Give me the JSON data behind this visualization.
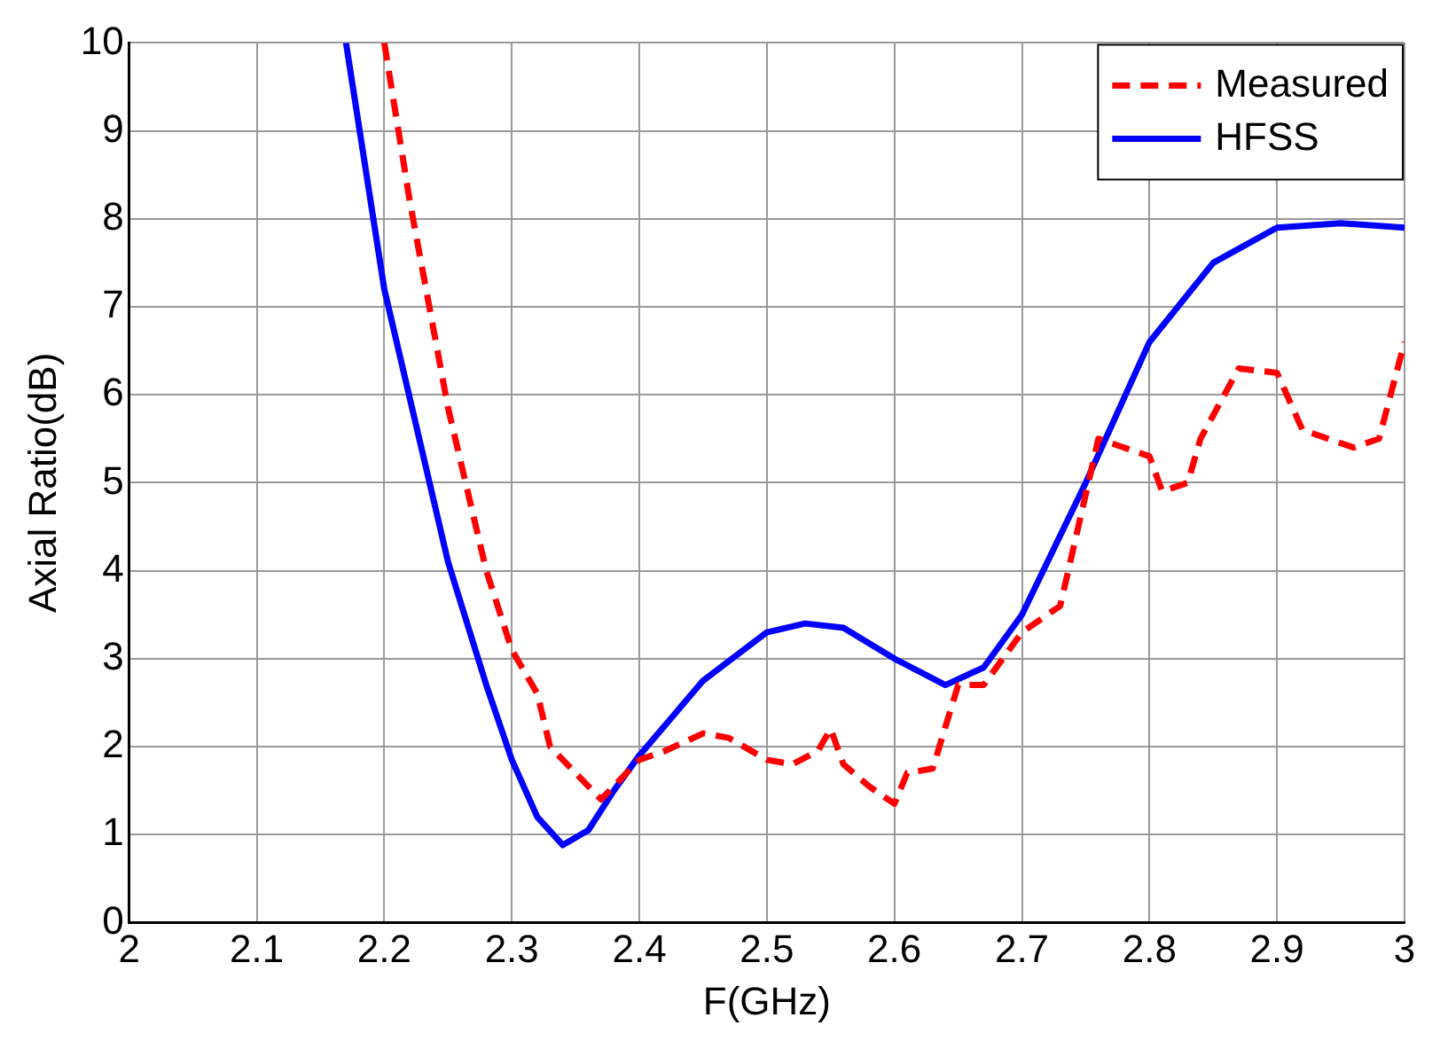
{
  "chart_data": {
    "type": "line",
    "xlabel": "F(GHz)",
    "ylabel": "Axial Ratio(dB)",
    "xlim": [
      2,
      3
    ],
    "xticks": [
      2,
      2.1,
      2.2,
      2.3,
      2.4,
      2.5,
      2.6,
      2.7,
      2.8,
      2.9,
      3
    ],
    "ylim": [
      0,
      10
    ],
    "yticks": [
      0,
      1,
      2,
      3,
      4,
      5,
      6,
      7,
      8,
      9,
      10
    ],
    "grid": true,
    "legend": "top right",
    "marker": "none",
    "series": [
      {
        "name": "Measured",
        "color": "#ff0000",
        "line_style": "dashed",
        "x": [
          2.2,
          2.22,
          2.25,
          2.28,
          2.3,
          2.32,
          2.33,
          2.35,
          2.37,
          2.4,
          2.42,
          2.45,
          2.47,
          2.5,
          2.52,
          2.54,
          2.55,
          2.56,
          2.58,
          2.6,
          2.61,
          2.63,
          2.65,
          2.67,
          2.7,
          2.73,
          2.76,
          2.78,
          2.8,
          2.81,
          2.83,
          2.84,
          2.87,
          2.9,
          2.92,
          2.94,
          2.96,
          2.98,
          3.0
        ],
        "values": [
          10,
          8.2,
          5.85,
          4.0,
          3.1,
          2.6,
          2.0,
          1.7,
          1.4,
          1.85,
          1.95,
          2.15,
          2.1,
          1.85,
          1.8,
          1.95,
          2.2,
          1.8,
          1.55,
          1.35,
          1.7,
          1.75,
          2.7,
          2.7,
          3.3,
          3.6,
          5.5,
          5.4,
          5.3,
          4.9,
          5.0,
          5.5,
          6.3,
          6.25,
          5.6,
          5.5,
          5.4,
          5.5,
          6.6
        ]
      },
      {
        "name": "HFSS",
        "color": "#0000ff",
        "line_style": "solid",
        "x": [
          2.17,
          2.2,
          2.25,
          2.28,
          2.3,
          2.32,
          2.34,
          2.36,
          2.38,
          2.4,
          2.45,
          2.5,
          2.53,
          2.56,
          2.6,
          2.64,
          2.67,
          2.7,
          2.75,
          2.8,
          2.85,
          2.9,
          2.95,
          3.0
        ],
        "values": [
          10,
          7.2,
          4.1,
          2.7,
          1.85,
          1.2,
          0.88,
          1.05,
          1.5,
          1.9,
          2.75,
          3.3,
          3.4,
          3.35,
          3.0,
          2.7,
          2.9,
          3.5,
          5.0,
          6.6,
          7.5,
          7.9,
          7.95,
          7.9
        ]
      }
    ]
  }
}
